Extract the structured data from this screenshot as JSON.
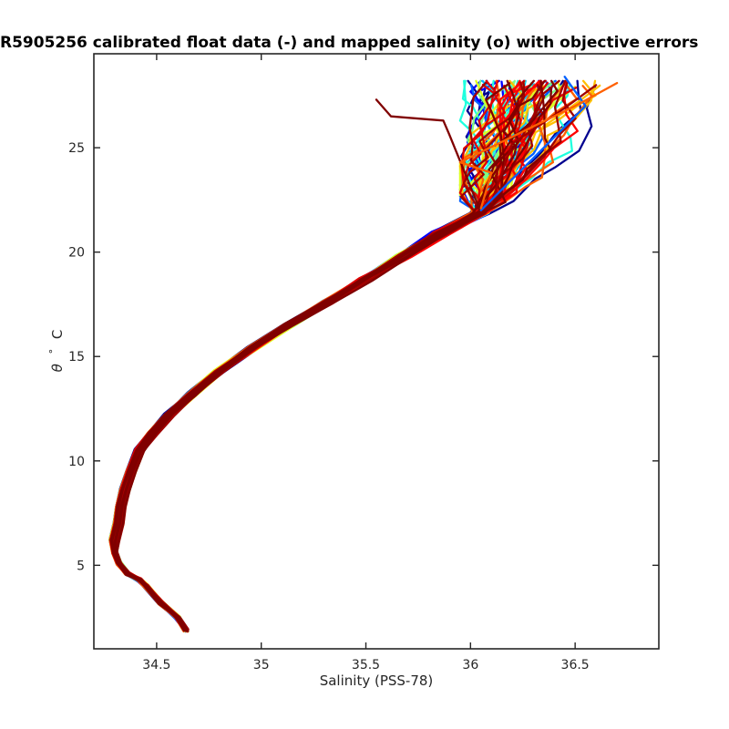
{
  "chart_data": {
    "type": "line",
    "title": "R5905256 calibrated float data (-) and mapped salinity (o) with objective errors",
    "xlabel": "Salinity (PSS-78)",
    "ylabel_symbol": "θ",
    "ylabel_degree": "°",
    "ylabel_unit": "C",
    "xlim": [
      34.2,
      36.9
    ],
    "ylim": [
      1.0,
      29.5
    ],
    "xticks": [
      34.5,
      35,
      35.5,
      36,
      36.5
    ],
    "xtick_labels": [
      "34.5",
      "35",
      "35.5",
      "36",
      "36.5"
    ],
    "yticks": [
      5,
      10,
      15,
      20,
      25
    ],
    "ytick_labels": [
      "5",
      "10",
      "15",
      "20",
      "25"
    ],
    "grid": false,
    "legend": "none",
    "colormap": "jet (profile number, early = blue, late = dark red)",
    "colors": [
      "#00008f",
      "#0000ff",
      "#0060ff",
      "#00bfff",
      "#20ffdf",
      "#80ff80",
      "#dfff20",
      "#ffbf00",
      "#ff6000",
      "#ff0000",
      "#df0000",
      "#9f0000",
      "#800000"
    ],
    "base_profile": {
      "salinity": [
        34.64,
        34.6,
        34.52,
        34.45,
        34.42,
        34.36,
        34.32,
        34.3,
        34.3,
        34.32,
        34.33,
        34.35,
        34.38,
        34.42,
        34.48,
        34.56,
        34.67,
        34.8,
        34.96,
        35.13,
        35.32,
        35.5,
        35.68,
        35.86,
        36.05
      ],
      "theta": [
        1.9,
        2.5,
        3.2,
        4.0,
        4.3,
        4.6,
        5.1,
        5.6,
        6.2,
        7.0,
        7.8,
        8.6,
        9.5,
        10.5,
        11.3,
        12.2,
        13.2,
        14.3,
        15.4,
        16.5,
        17.6,
        18.7,
        19.8,
        20.9,
        21.9
      ]
    },
    "surface_scatter": {
      "salinity_range": [
        35.95,
        36.75
      ],
      "theta_range": [
        22.0,
        28.2
      ]
    },
    "annotated_profiles": [
      {
        "color": "#800000",
        "salinity": [
          36.05,
          35.9,
          35.87,
          35.62,
          35.55
        ],
        "theta": [
          21.9,
          25.6,
          26.3,
          26.5,
          27.3
        ]
      },
      {
        "color": "#9f0000",
        "salinity": [
          36.1,
          36.2,
          36.45,
          36.6
        ],
        "theta": [
          22.4,
          25.2,
          26.9,
          28.0
        ]
      },
      {
        "color": "#0060ff",
        "salinity": [
          36.05,
          36.3,
          36.55,
          36.45
        ],
        "theta": [
          22.0,
          24.5,
          27.0,
          28.4
        ]
      },
      {
        "color": "#ff6000",
        "salinity": [
          36.05,
          36.1,
          35.95,
          36.5,
          36.7
        ],
        "theta": [
          22.1,
          23.8,
          24.3,
          27.0,
          28.1
        ]
      }
    ]
  }
}
